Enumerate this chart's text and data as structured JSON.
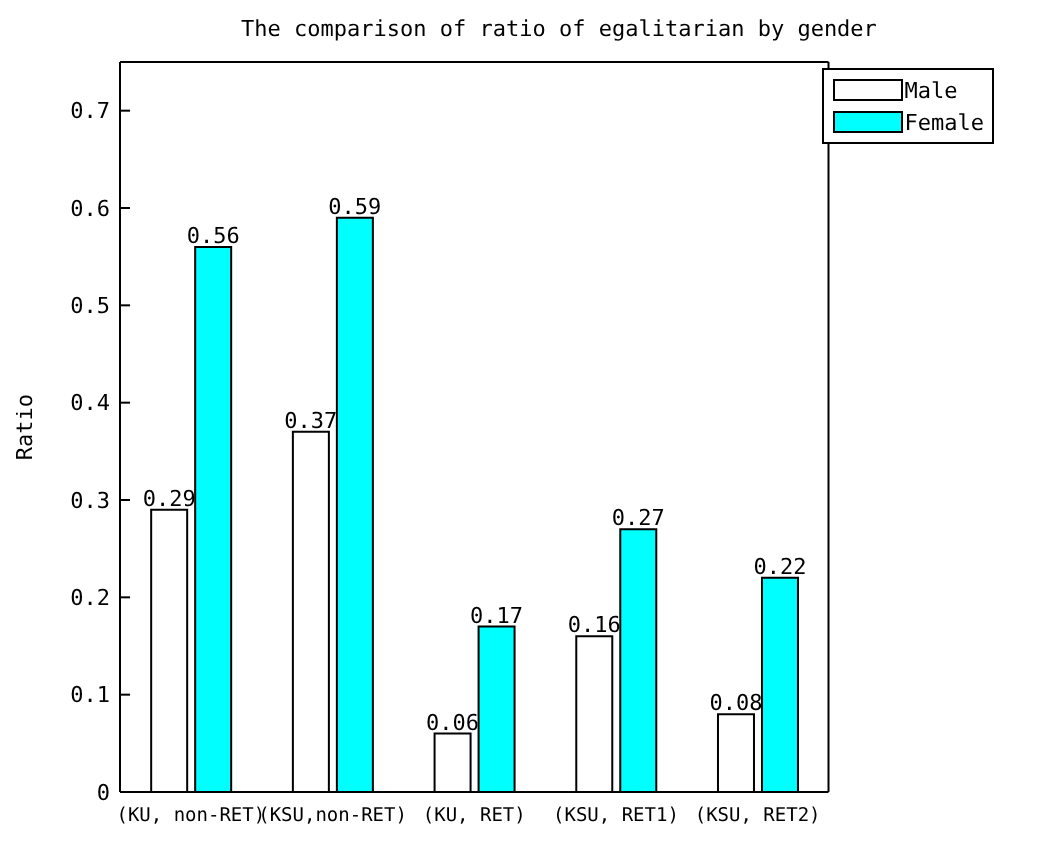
{
  "chart_data": {
    "type": "bar",
    "title": "The comparison of ratio of egalitarian by gender",
    "ylabel": "Ratio",
    "categories": [
      "(KU, non-RET)",
      "(KSU,non-RET)",
      "(KU, RET)",
      "(KSU, RET1)",
      "(KSU, RET2)"
    ],
    "series": [
      {
        "name": "Male",
        "color": "#ffffff",
        "values": [
          0.29,
          0.37,
          0.06,
          0.16,
          0.08
        ]
      },
      {
        "name": "Female",
        "color": "#00ffff",
        "values": [
          0.56,
          0.59,
          0.17,
          0.27,
          0.22
        ]
      }
    ],
    "ylim": [
      0,
      0.75
    ],
    "yticks": [
      0,
      0.1,
      0.2,
      0.3,
      0.4,
      0.5,
      0.6,
      0.7
    ],
    "data_labels": true,
    "legend": "top right",
    "grid": false
  }
}
